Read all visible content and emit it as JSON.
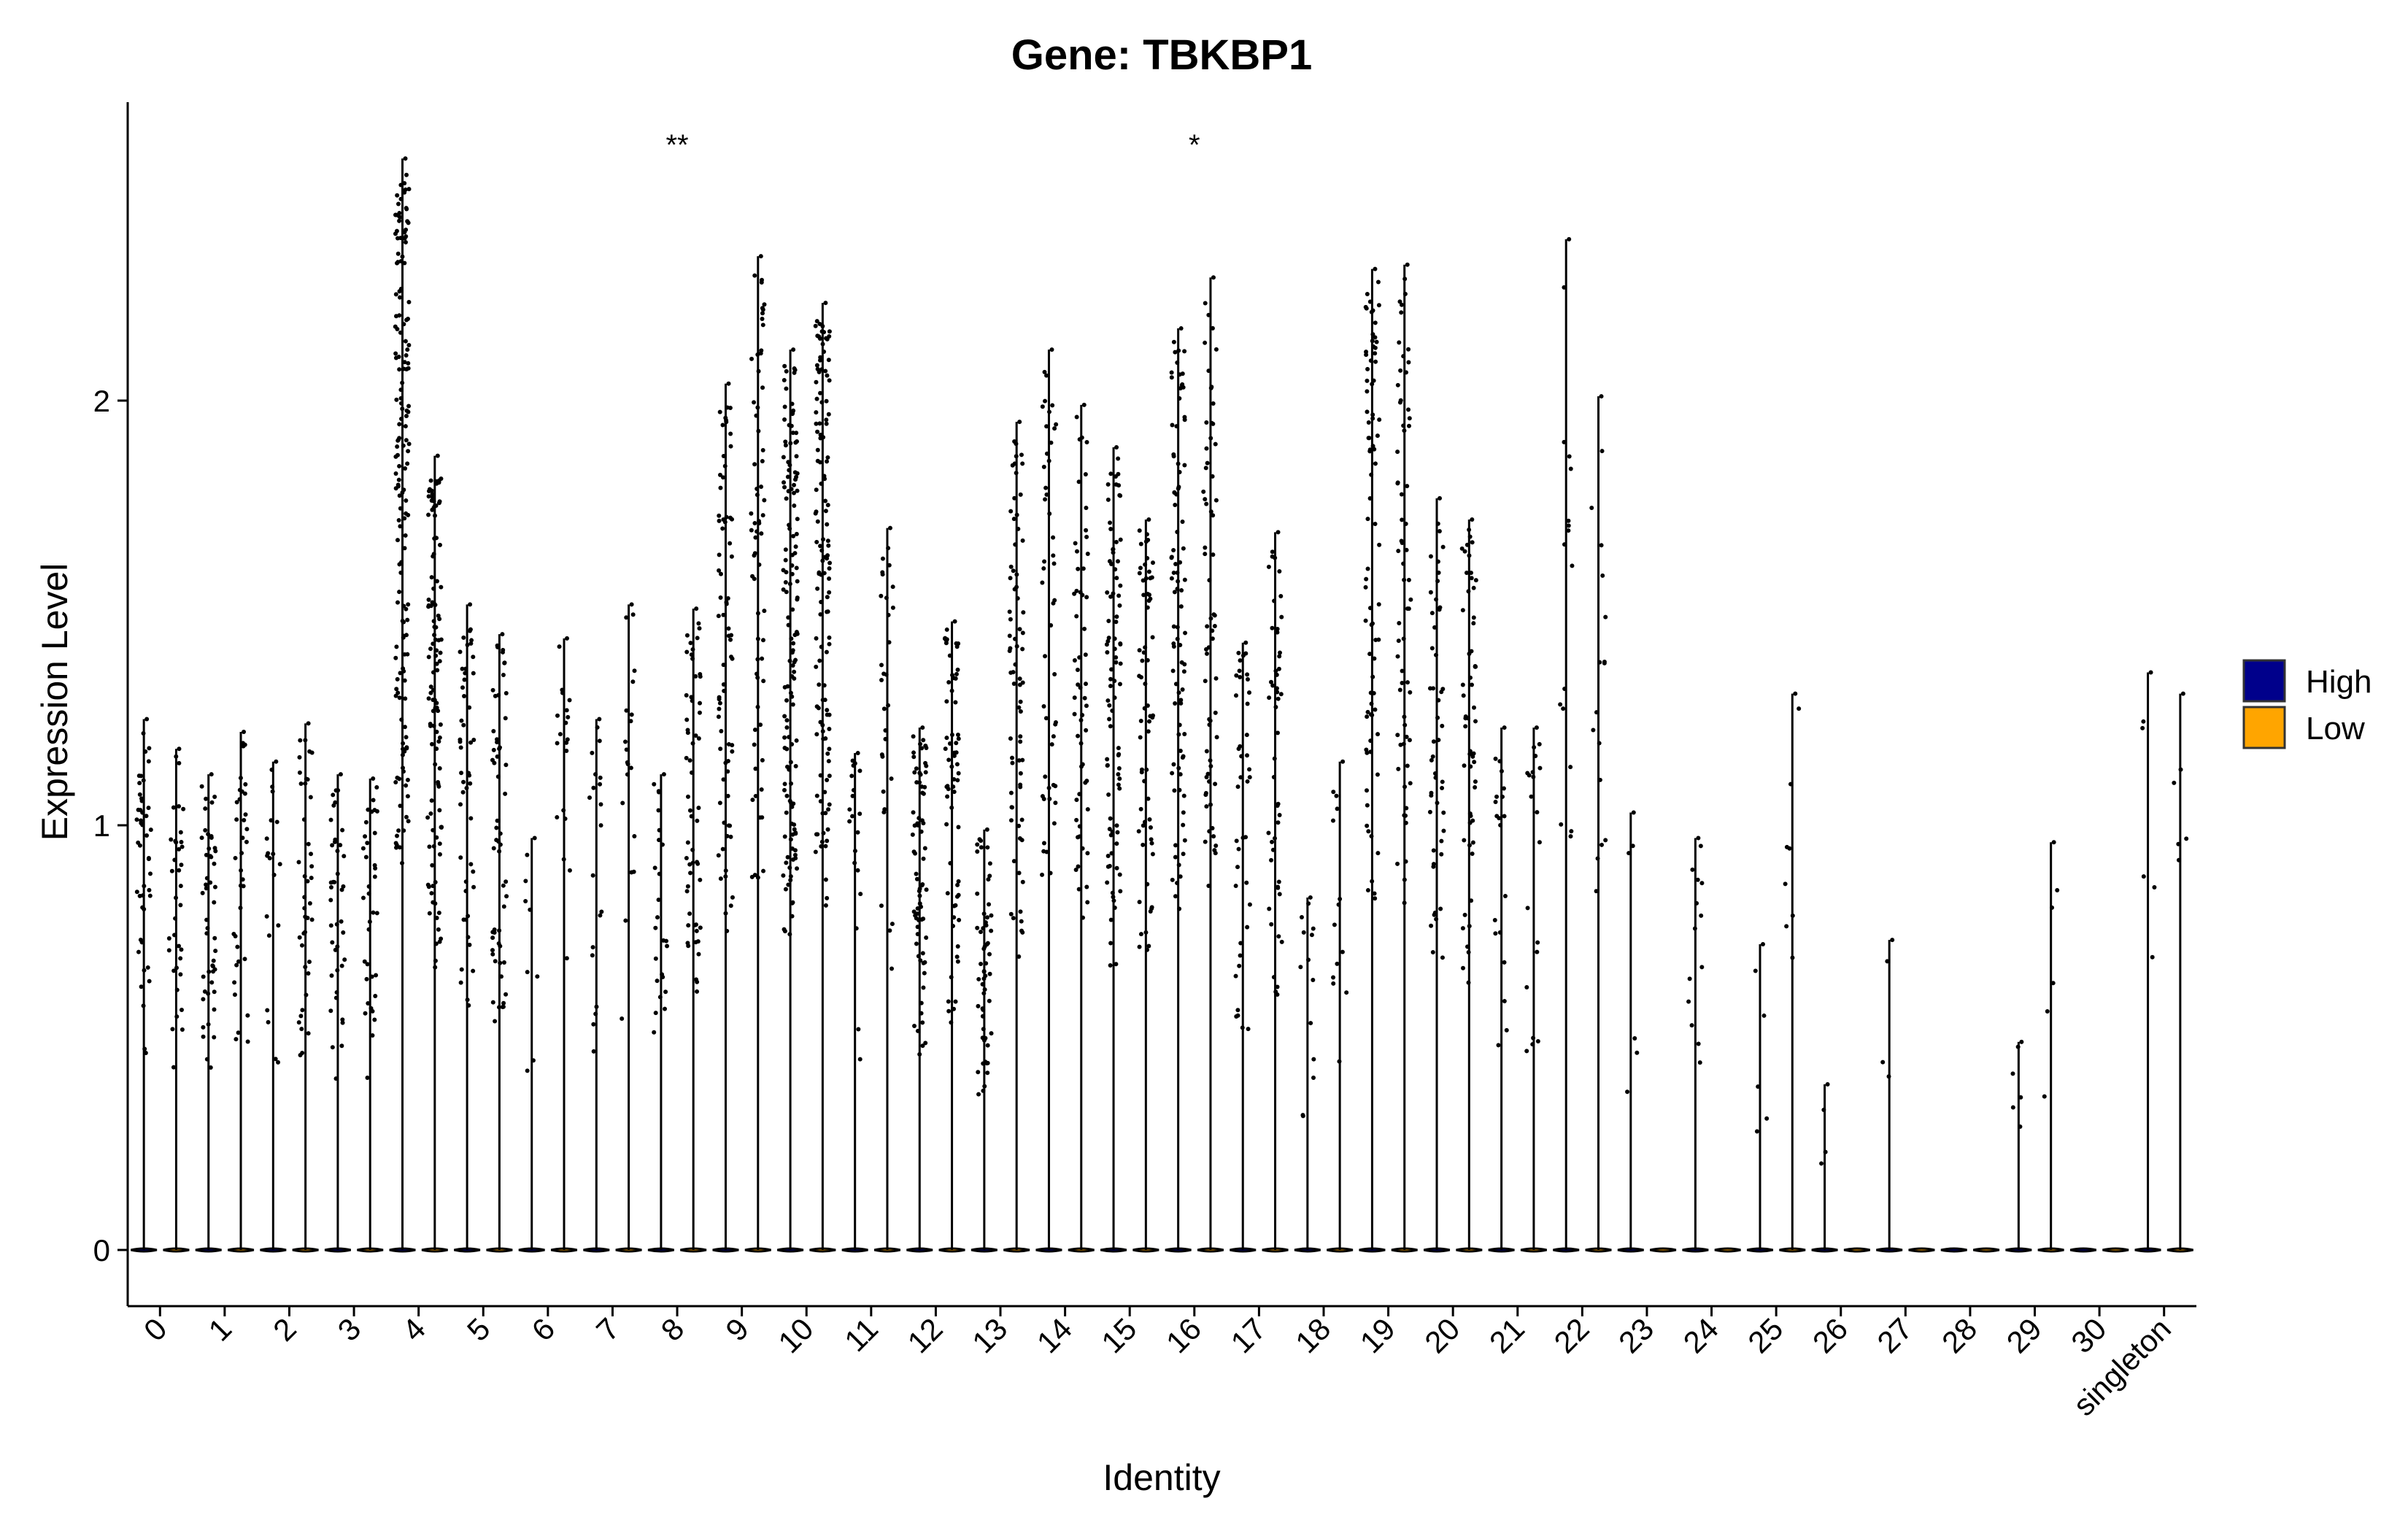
{
  "chart_data": {
    "type": "violin",
    "title": "Gene: TBKBP1",
    "xlabel": "Identity",
    "ylabel": "Expression Level",
    "ylim": [
      -0.13,
      2.65
    ],
    "yticks": [
      0,
      1,
      2
    ],
    "grid": false,
    "legend_position": "right",
    "legend": [
      {
        "name": "High",
        "color": "#00008B"
      },
      {
        "name": "Low",
        "color": "#FFA500"
      }
    ],
    "categories": [
      "0",
      "1",
      "2",
      "3",
      "4",
      "5",
      "6",
      "7",
      "8",
      "9",
      "10",
      "11",
      "12",
      "13",
      "14",
      "15",
      "16",
      "17",
      "18",
      "19",
      "20",
      "21",
      "22",
      "23",
      "24",
      "25",
      "26",
      "27",
      "28",
      "29",
      "30",
      "singleton"
    ],
    "significance": [
      {
        "category": "8",
        "label": "**"
      },
      {
        "category": "16",
        "label": "*"
      }
    ],
    "series": [
      {
        "name": "High",
        "max": [
          1.25,
          1.12,
          1.15,
          1.12,
          2.57,
          1.52,
          0.97,
          1.25,
          1.12,
          2.04,
          2.12,
          1.17,
          1.23,
          0.99,
          2.12,
          1.89,
          2.17,
          1.43,
          0.83,
          2.31,
          1.77,
          1.23,
          2.38,
          1.03,
          0.97,
          0.72,
          0.39,
          0.73,
          0.0,
          0.49,
          0.0,
          1.36
        ],
        "density": [
          0.28,
          0.3,
          0.12,
          0.25,
          1.0,
          0.3,
          0.05,
          0.12,
          0.15,
          0.45,
          0.85,
          0.12,
          0.45,
          0.35,
          0.3,
          0.55,
          0.55,
          0.25,
          0.08,
          0.5,
          0.3,
          0.12,
          0.1,
          0.03,
          0.08,
          0.03,
          0.02,
          0.02,
          0.0,
          0.03,
          0.0,
          0.03
        ]
      },
      {
        "name": "Low",
        "max": [
          1.18,
          1.22,
          1.24,
          1.11,
          1.87,
          1.45,
          1.44,
          1.52,
          1.51,
          2.34,
          2.23,
          1.7,
          1.48,
          1.95,
          1.99,
          1.72,
          2.29,
          1.69,
          1.15,
          2.32,
          1.72,
          1.23,
          2.01,
          0.0,
          0.0,
          1.31,
          0.0,
          0.0,
          0.0,
          0.96,
          0.0,
          1.31
        ],
        "density": [
          0.22,
          0.22,
          0.25,
          0.22,
          0.7,
          0.35,
          0.12,
          0.12,
          0.35,
          0.4,
          0.8,
          0.18,
          0.4,
          0.45,
          0.35,
          0.4,
          0.4,
          0.3,
          0.08,
          0.4,
          0.35,
          0.12,
          0.1,
          0.0,
          0.0,
          0.05,
          0.0,
          0.0,
          0.0,
          0.03,
          0.0,
          0.03
        ]
      }
    ]
  }
}
